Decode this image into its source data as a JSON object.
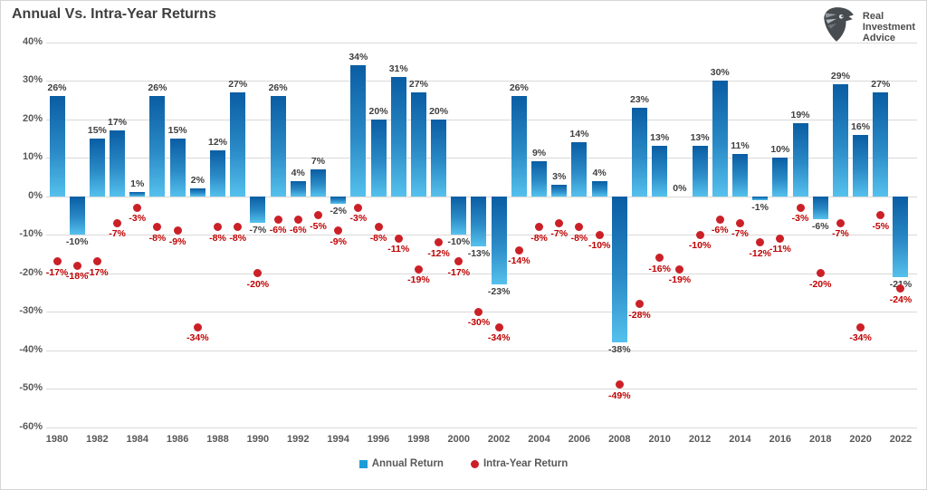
{
  "header": {
    "title": "Annual Vs. Intra-Year Returns"
  },
  "logo": {
    "icon": "eagle-head-icon",
    "line1": "Real",
    "line2": "Investment",
    "line3": "Advice"
  },
  "legend": {
    "annual": {
      "label": "Annual Return",
      "marker": "square",
      "color": "#1e9cd7"
    },
    "intra": {
      "label": "Intra-Year Return",
      "marker": "circle",
      "color": "#cb2027"
    }
  },
  "chart_data": {
    "type": "bar",
    "title": "Annual Vs. Intra-Year Returns",
    "x": [
      1980,
      1981,
      1982,
      1983,
      1984,
      1985,
      1986,
      1987,
      1988,
      1989,
      1990,
      1991,
      1992,
      1993,
      1994,
      1995,
      1996,
      1997,
      1998,
      1999,
      2000,
      2001,
      2002,
      2003,
      2004,
      2005,
      2006,
      2007,
      2008,
      2009,
      2010,
      2011,
      2012,
      2013,
      2014,
      2015,
      2016,
      2017,
      2018,
      2019,
      2020,
      2021,
      2022
    ],
    "series": [
      {
        "name": "Annual Return",
        "type": "bar",
        "values": [
          26,
          -10,
          15,
          17,
          1,
          26,
          15,
          2,
          12,
          27,
          -7,
          26,
          4,
          7,
          -2,
          34,
          20,
          31,
          27,
          20,
          -10,
          -13,
          -23,
          26,
          9,
          3,
          14,
          4,
          -38,
          23,
          13,
          0,
          13,
          30,
          11,
          -1,
          10,
          19,
          -6,
          29,
          16,
          27,
          -21
        ]
      },
      {
        "name": "Intra-Year Return",
        "type": "scatter",
        "values": [
          -17,
          -18,
          -17,
          -7,
          -3,
          -8,
          -9,
          -34,
          -8,
          -8,
          -20,
          -6,
          -6,
          -5,
          -9,
          -3,
          -8,
          -11,
          -19,
          -12,
          -17,
          -30,
          -34,
          -14,
          -8,
          -7,
          -8,
          -10,
          -49,
          -28,
          -16,
          -19,
          -10,
          -6,
          -7,
          -12,
          -11,
          -3,
          -20,
          -7,
          -34,
          -5,
          -24
        ]
      }
    ],
    "ylim": [
      -60,
      40
    ],
    "yticks": [
      "40%",
      "30%",
      "20%",
      "10%",
      "0%",
      "-10%",
      "-20%",
      "-30%",
      "-40%",
      "-50%",
      "-60%"
    ],
    "xticks": [
      1980,
      1982,
      1984,
      1986,
      1988,
      1990,
      1992,
      1994,
      1996,
      1998,
      2000,
      2002,
      2004,
      2006,
      2008,
      2010,
      2012,
      2014,
      2016,
      2018,
      2020,
      2022
    ],
    "grid": true,
    "legend_position": "bottom",
    "xlabel": "",
    "ylabel": "",
    "colors": {
      "bar_top": "#0a5da3",
      "bar_bottom": "#55c1ed",
      "dot": "#cb2027",
      "dot_label": "#c00000",
      "bar_label": "#404040",
      "axis_text": "#595959",
      "gridline": "#d9d9d9",
      "legend_square": "#1e9cd7"
    }
  }
}
